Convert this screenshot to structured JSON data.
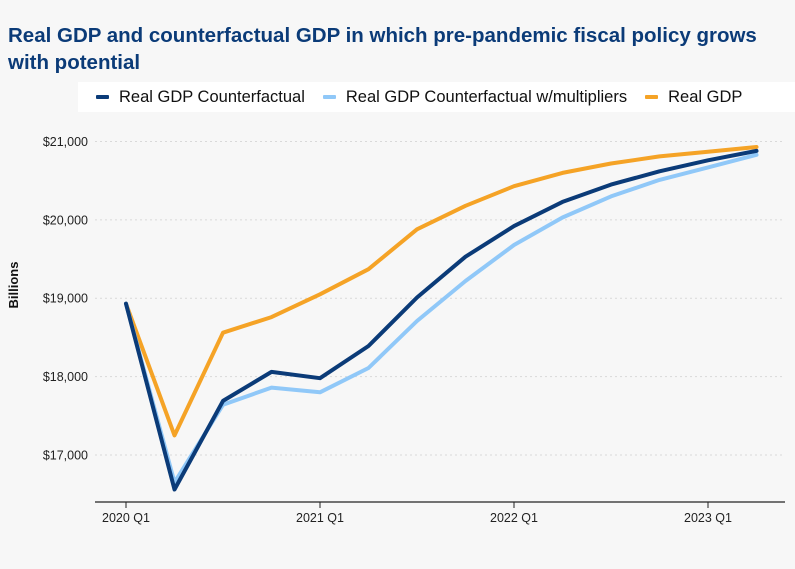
{
  "chart_data": {
    "type": "line",
    "title": "Real GDP and counterfactual  GDP in which pre-pandemic fiscal policy grows with potential",
    "ylabel": "Billions",
    "xlabel": "",
    "ylim": [
      16400,
      21300
    ],
    "y_ticks": [
      {
        "value": 17000,
        "label": "$17,000"
      },
      {
        "value": 18000,
        "label": "$18,000"
      },
      {
        "value": 19000,
        "label": "$19,000"
      },
      {
        "value": 20000,
        "label": "$20,000"
      },
      {
        "value": 21000,
        "label": "$21,000"
      }
    ],
    "x": [
      "2020 Q1",
      "2020 Q2",
      "2020 Q3",
      "2020 Q4",
      "2021 Q1",
      "2021 Q2",
      "2021 Q3",
      "2021 Q4",
      "2022 Q1",
      "2022 Q2",
      "2022 Q3",
      "2022 Q4",
      "2023 Q1",
      "2023 Q2"
    ],
    "x_ticks": [
      {
        "index": 0,
        "label": "2020 Q1"
      },
      {
        "index": 4,
        "label": "2021 Q1"
      },
      {
        "index": 8,
        "label": "2022 Q1"
      },
      {
        "index": 12,
        "label": "2023 Q1"
      }
    ],
    "grid": true,
    "legend_position": "top",
    "series": [
      {
        "name": "Real GDP Counterfactual",
        "color": "#0b3b78",
        "values": [
          18930,
          16560,
          17690,
          18060,
          17980,
          18390,
          19010,
          19530,
          19920,
          20230,
          20450,
          20620,
          20760,
          20880
        ]
      },
      {
        "name": "Real GDP Counterfactual w/multipliers",
        "color": "#90c8f8",
        "values": [
          18930,
          16650,
          17640,
          17860,
          17800,
          18110,
          18710,
          19220,
          19680,
          20030,
          20300,
          20510,
          20670,
          20830
        ]
      },
      {
        "name": "Real GDP",
        "color": "#f5a326",
        "values": [
          18930,
          17250,
          18560,
          18760,
          19050,
          19370,
          19880,
          20180,
          20430,
          20600,
          20720,
          20810,
          20870,
          20930
        ]
      }
    ]
  }
}
